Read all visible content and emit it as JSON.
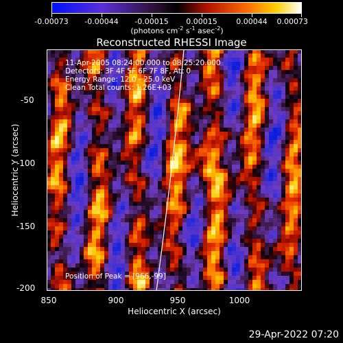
{
  "colorbar": {
    "ticks": [
      "-0.00073",
      "-0.00044",
      "-0.00015",
      "0.00015",
      "0.00044",
      "0.00073"
    ],
    "units_prefix": "(photons cm",
    "units_exp1": "-2",
    "units_mid1": " s",
    "units_exp2": "-1",
    "units_mid2": " asec",
    "units_exp3": "-2",
    "units_suffix": ")"
  },
  "title": "Reconstructed RHESSI Image",
  "info": {
    "time": "11-Apr-2005 08:24:00.000 to 08:25:20.000",
    "detectors": "Detectors: 3F 4F 5F 6F 7F 8F, Att 0",
    "energy": "Energy Range: 12.0 - 25.0 keV",
    "clean": "Clean    Total counts: 1.26E+03"
  },
  "peak": "Position of Peak = [966,-99]",
  "axes": {
    "x_title": "Heliocentric X (arcsec)",
    "y_title": "Heliocentric Y (arcsec)",
    "x_range": [
      850,
      1040
    ],
    "y_range": [
      -202,
      5
    ],
    "x_ticks": [
      "850",
      "900",
      "950",
      "1000"
    ],
    "y_ticks": [
      "-50",
      "-100",
      "-150",
      "-200"
    ]
  },
  "timestamp": "29-Apr-2022 07:20"
}
